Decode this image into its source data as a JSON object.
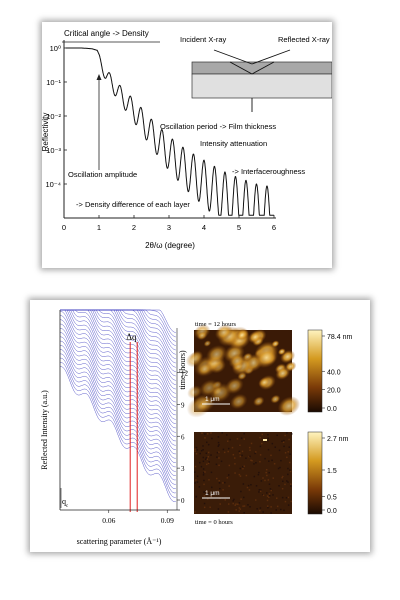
{
  "top_figure": {
    "chart_data": {
      "type": "line",
      "xlabel": "2θ/ω (degree)",
      "ylabel": "Reflectivity",
      "xlim": [
        0,
        6
      ],
      "x_ticks": [
        "0",
        "1",
        "2",
        "3",
        "4",
        "5",
        "6"
      ],
      "y_scale": "log",
      "ylim": [
        1e-05,
        1.5
      ],
      "y_ticks": [
        "10⁰",
        "10⁻¹",
        "10⁻²",
        "10⁻³",
        "10⁻⁴"
      ],
      "y_tick_values": [
        1,
        0.1,
        0.01,
        0.001,
        0.0001
      ],
      "critical_angle": 1.0,
      "oscillation_period": 0.3,
      "points": [
        [
          0.05,
          1.0
        ],
        [
          0.5,
          1.0
        ],
        [
          0.8,
          0.95
        ],
        [
          0.95,
          0.85
        ],
        [
          1.05,
          0.5
        ],
        [
          1.2,
          0.25
        ],
        [
          1.5,
          0.1
        ],
        [
          2.0,
          0.03
        ],
        [
          2.5,
          0.008
        ],
        [
          3.0,
          0.0025
        ],
        [
          3.5,
          0.001
        ],
        [
          4.0,
          0.0005
        ],
        [
          4.5,
          0.00025
        ],
        [
          5.0,
          0.00015
        ],
        [
          5.5,
          0.0001
        ],
        [
          6.0,
          8e-05
        ]
      ]
    },
    "annotations": {
      "critical": "Critical angle -> Density",
      "oscillation_amplitude": "Oscillation amplitude",
      "density_difference": "-> Density difference of each layer",
      "period": "Oscillation period -> Film thickness",
      "attenuation": "Intensity attenuation",
      "roughness": "-> Interfaceroughness"
    },
    "inset": {
      "incident": "Incident X-ray",
      "reflected": "Reflected X-ray"
    }
  },
  "bottom_figure": {
    "left_panel": {
      "chart_data": {
        "type": "line",
        "xlabel": "scattering parameter (Å⁻¹)",
        "ylabel": "Reflected Intensity (a.u.)",
        "y2label": "time (hours)",
        "xlim": [
          0.035,
          0.095
        ],
        "x_ticks": [
          0.06,
          0.09
        ],
        "x_tick_labels": [
          "0.06",
          "0.09"
        ],
        "time_ticks": [
          "0",
          "3",
          "6",
          "9",
          "12"
        ],
        "time_tick_values": [
          0,
          3,
          6,
          9,
          12
        ],
        "time_range": [
          0,
          16
        ],
        "delta_q_label": "Δq",
        "qc_label": "q",
        "qc_subscript": "c",
        "series_count": 40,
        "fringe_period": 0.0123,
        "marker_q": 0.071
      }
    },
    "afm_top": {
      "title": "time = 12 hours",
      "scale_bar": "1 μm",
      "colorbar_ticks": [
        "78.4 nm",
        "40.0",
        "20.0",
        "0.0"
      ],
      "colorbar_values": [
        78.4,
        40.0,
        20.0,
        0.0
      ],
      "colorbar_max": 78.4
    },
    "afm_bottom": {
      "title": "time = 0 hours",
      "scale_bar": "1 μm",
      "colorbar_ticks": [
        "2.7 nm",
        "1.5",
        "0.5",
        "0.0"
      ],
      "colorbar_values": [
        2.7,
        1.5,
        0.5,
        0.0
      ],
      "colorbar_max": 2.7
    },
    "colors": {
      "waterfall": "#3d3dc0",
      "marker": "#e02020",
      "afm_dark": "#2a1205",
      "afm_light": "#ffe9a8"
    }
  }
}
